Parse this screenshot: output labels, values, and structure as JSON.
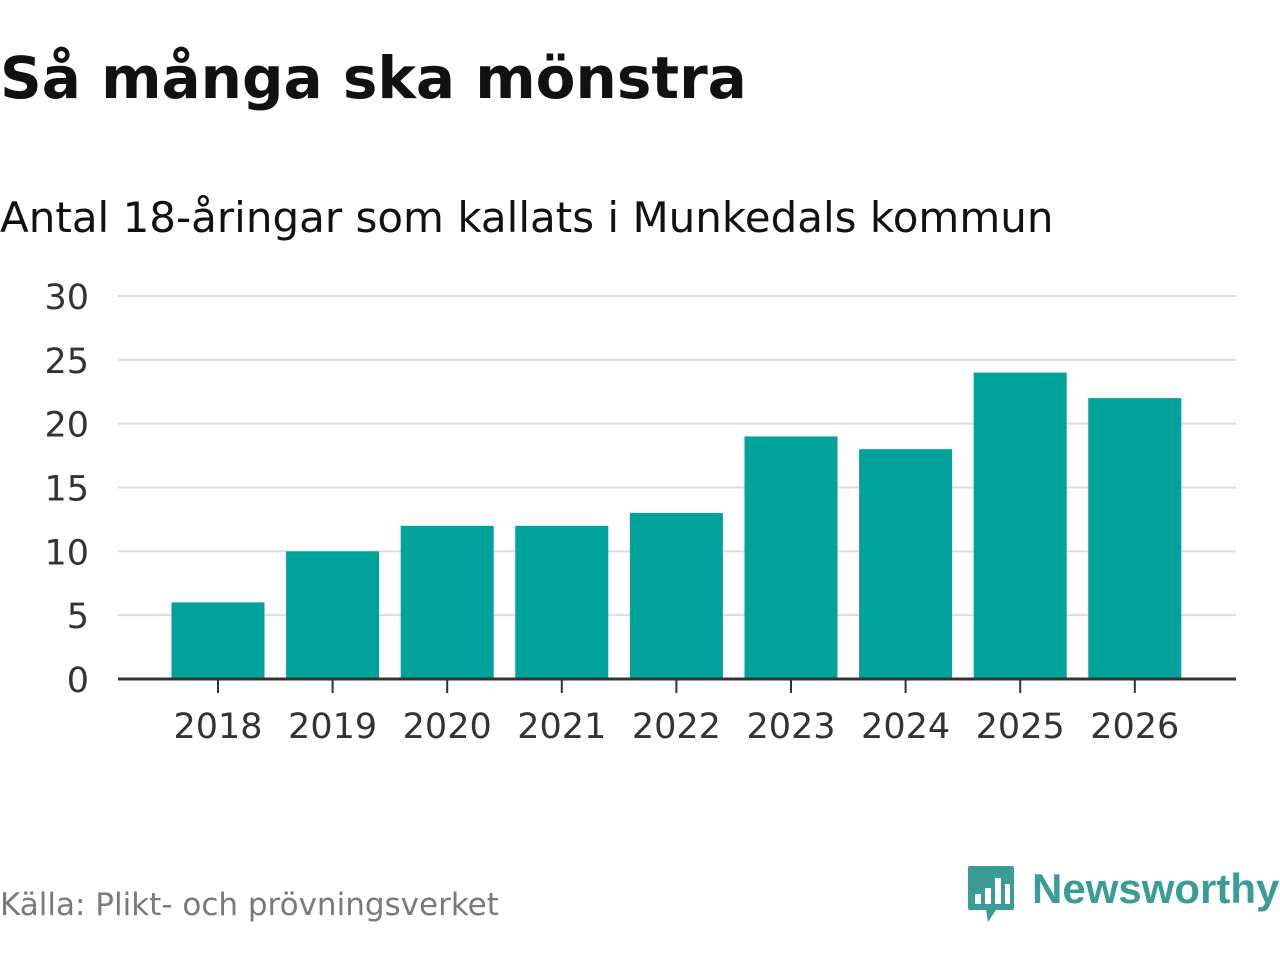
{
  "chart_data": {
    "type": "bar",
    "title": "Så många ska mönstra",
    "subtitle": "Antal 18-åringar som kallats i Munkedals kommun",
    "categories": [
      "2018",
      "2019",
      "2020",
      "2021",
      "2022",
      "2023",
      "2024",
      "2025",
      "2026"
    ],
    "values": [
      6,
      10,
      12,
      12,
      13,
      19,
      18,
      24,
      22
    ],
    "ylim": [
      0,
      30
    ],
    "yticks": [
      0,
      5,
      10,
      15,
      20,
      25,
      30
    ],
    "xlabel": "",
    "ylabel": "",
    "grid": true,
    "bar_color": "#00a29a"
  },
  "footer": {
    "source": "Källa: Plikt- och prövningsverket",
    "brand": "Newsworthy",
    "brand_icon": "bar-chart-speech-bubble-icon",
    "brand_color": "#3b9b97"
  }
}
